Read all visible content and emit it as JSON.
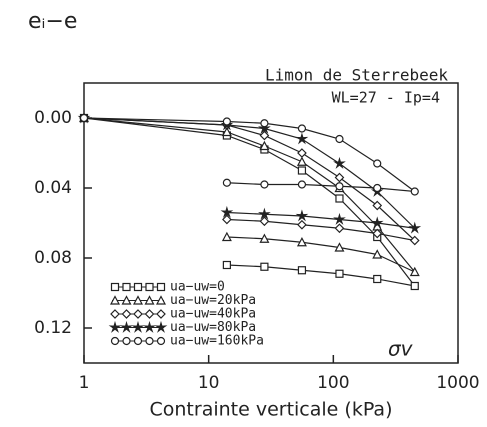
{
  "chart_data": {
    "type": "line",
    "y_label": "eᵢ−e",
    "x_label": "Contrainte verticale (kPa)",
    "annotations": [
      "Limon de Sterrebeek",
      "WL=27 - Ip=4",
      "σv"
    ],
    "log_x": true,
    "y_inverted": true,
    "xlim": [
      1,
      1000
    ],
    "xticks": [
      1,
      10,
      100,
      1000
    ],
    "ylim": [
      -0.02,
      0.14
    ],
    "yticks": [
      {
        "value": 0,
        "label": "0.00"
      },
      0.04,
      0.08,
      0.12
    ],
    "legend": "lower left",
    "series": [
      {
        "name": "ua−uw=0",
        "color": "#222",
        "marker": "square",
        "x": [
          1,
          14,
          28,
          56,
          112,
          225,
          450,
          225,
          112,
          56,
          28,
          14
        ],
        "values": [
          0,
          0.01,
          0.018,
          0.03,
          0.046,
          0.068,
          0.096,
          0.092,
          0.089,
          0.087,
          0.085,
          0.084
        ]
      },
      {
        "name": "ua−uw=20kPa",
        "color": "#222",
        "marker": "triangle",
        "x": [
          1,
          14,
          28,
          56,
          112,
          225,
          450,
          225,
          112,
          56,
          28,
          14
        ],
        "values": [
          0,
          0.008,
          0.016,
          0.025,
          0.04,
          0.062,
          0.088,
          0.078,
          0.074,
          0.071,
          0.069,
          0.068
        ]
      },
      {
        "name": "ua−uw=40kPa",
        "color": "#222",
        "marker": "diamond",
        "x": [
          1,
          14,
          28,
          56,
          112,
          225,
          450,
          225,
          112,
          56,
          28,
          14
        ],
        "values": [
          0,
          0.004,
          0.01,
          0.02,
          0.034,
          0.05,
          0.07,
          0.066,
          0.063,
          0.061,
          0.059,
          0.058
        ]
      },
      {
        "name": "ua−uw=80kPa",
        "color": "#222",
        "marker": "star",
        "x": [
          1,
          14,
          28,
          56,
          112,
          225,
          450,
          225,
          112,
          56,
          28,
          14
        ],
        "values": [
          0,
          0.004,
          0.006,
          0.012,
          0.026,
          0.042,
          0.063,
          0.06,
          0.058,
          0.056,
          0.055,
          0.054
        ]
      },
      {
        "name": "ua−uw=160kPa",
        "color": "#222",
        "marker": "circle",
        "x": [
          1,
          14,
          28,
          56,
          112,
          225,
          450,
          225,
          112,
          56,
          28,
          14
        ],
        "values": [
          0,
          0.002,
          0.003,
          0.006,
          0.012,
          0.026,
          0.042,
          0.04,
          0.039,
          0.038,
          0.038,
          0.037
        ]
      }
    ]
  }
}
